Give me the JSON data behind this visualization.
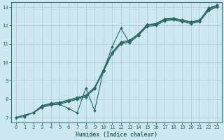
{
  "xlabel": "Humidex (Indice chaleur)",
  "bg_color": "#cce8ee",
  "grid_color": "#b0ced6",
  "line_color": "#2a6868",
  "xlim": [
    -0.5,
    23.5
  ],
  "ylim": [
    6.75,
    13.25
  ],
  "xticks": [
    0,
    1,
    2,
    3,
    4,
    5,
    6,
    7,
    8,
    9,
    10,
    11,
    12,
    13,
    14,
    15,
    16,
    17,
    18,
    19,
    20,
    21,
    22,
    23
  ],
  "yticks": [
    7,
    8,
    9,
    10,
    11,
    12,
    13
  ],
  "line_straight1": {
    "x": [
      0,
      1,
      2,
      3,
      4,
      5,
      6,
      7,
      8,
      9,
      10,
      11,
      12,
      13,
      14,
      15,
      16,
      17,
      18,
      19,
      20,
      21,
      22,
      23
    ],
    "y": [
      7.0,
      7.13,
      7.26,
      7.65,
      7.78,
      7.83,
      7.96,
      8.09,
      8.22,
      8.65,
      9.6,
      10.55,
      11.1,
      11.2,
      11.55,
      12.05,
      12.1,
      12.35,
      12.4,
      12.3,
      12.2,
      12.3,
      12.9,
      13.1
    ]
  },
  "line_straight2": {
    "x": [
      0,
      1,
      2,
      3,
      4,
      5,
      6,
      7,
      8,
      9,
      10,
      11,
      12,
      13,
      14,
      15,
      16,
      17,
      18,
      19,
      20,
      21,
      22,
      23
    ],
    "y": [
      7.0,
      7.13,
      7.26,
      7.6,
      7.73,
      7.78,
      7.91,
      8.04,
      8.17,
      8.6,
      9.55,
      10.5,
      11.05,
      11.15,
      11.5,
      12.0,
      12.05,
      12.3,
      12.35,
      12.25,
      12.15,
      12.25,
      12.85,
      13.05
    ]
  },
  "line_straight3": {
    "x": [
      0,
      1,
      2,
      3,
      4,
      5,
      6,
      7,
      8,
      9,
      10,
      11,
      12,
      13,
      14,
      15,
      16,
      17,
      18,
      19,
      20,
      21,
      22,
      23
    ],
    "y": [
      7.0,
      7.13,
      7.26,
      7.55,
      7.68,
      7.73,
      7.86,
      7.99,
      8.12,
      8.55,
      9.5,
      10.45,
      11.0,
      11.1,
      11.45,
      11.95,
      12.0,
      12.25,
      12.3,
      12.2,
      12.1,
      12.2,
      12.8,
      13.0
    ]
  },
  "line_wiggly": {
    "x": [
      0,
      1,
      2,
      3,
      4,
      5,
      6,
      7,
      8,
      9,
      10,
      11,
      12,
      13,
      14,
      15,
      16,
      17,
      18,
      19,
      20,
      21,
      22,
      23
    ],
    "y": [
      7.0,
      7.05,
      7.28,
      7.65,
      7.72,
      7.72,
      7.5,
      7.25,
      8.6,
      7.38,
      9.55,
      10.85,
      11.85,
      11.05,
      11.5,
      12.05,
      12.1,
      12.35,
      12.35,
      12.28,
      12.2,
      12.25,
      12.95,
      13.1
    ]
  }
}
